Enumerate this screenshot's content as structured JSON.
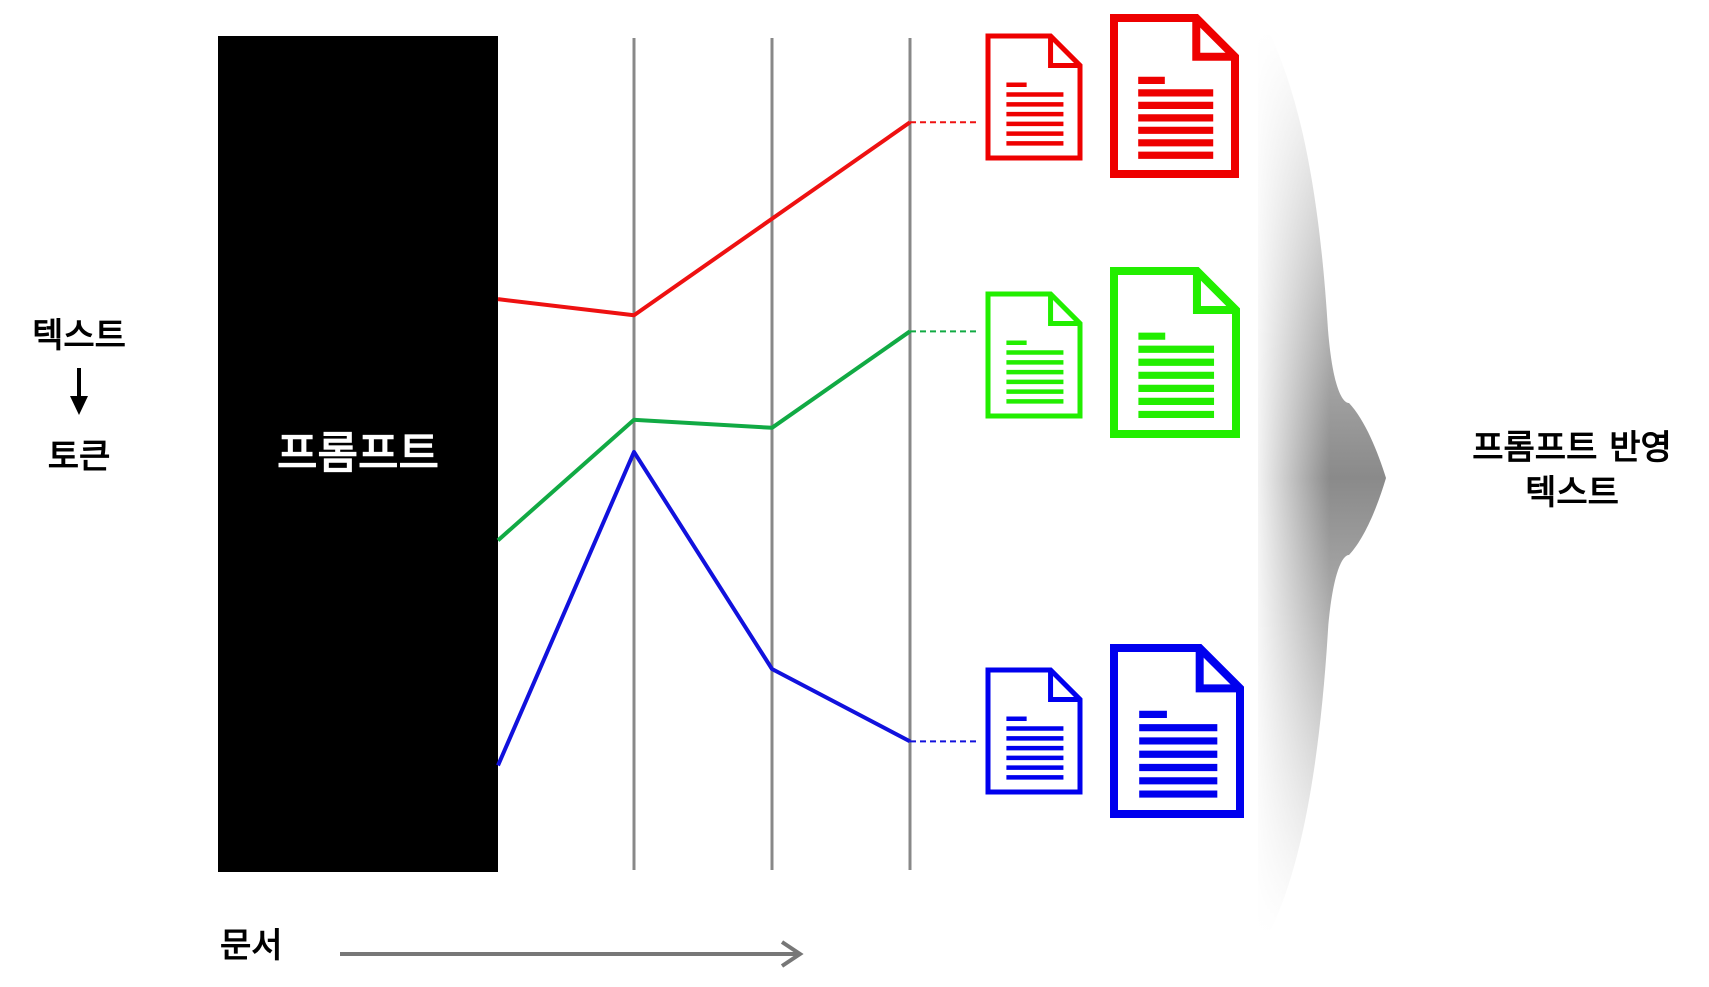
{
  "labels": {
    "text": "텍스트",
    "token": "토큰",
    "prompt": "프롬프트",
    "document": "문서",
    "output_line1": "프롬프트 반영",
    "output_line2": "텍스트"
  },
  "paths": [
    {
      "name": "red",
      "color": "#ee1111",
      "values": [
        0.71,
        0.69,
        0.81,
        0.93
      ]
    },
    {
      "name": "green",
      "color": "#11aa44",
      "values": [
        0.41,
        0.56,
        0.55,
        0.67
      ]
    },
    {
      "name": "blue",
      "color": "#1111dd",
      "values": [
        0.13,
        0.52,
        0.25,
        0.16
      ]
    }
  ],
  "documents": [
    {
      "color": "#ee0000",
      "icon": "document-icon"
    },
    {
      "color": "#22ee00",
      "icon": "document-icon"
    },
    {
      "color": "#0000ee",
      "icon": "document-icon"
    }
  ],
  "colors": {
    "prompt_block": "#000000",
    "grid_line": "#888888",
    "arrow": "#777777"
  }
}
